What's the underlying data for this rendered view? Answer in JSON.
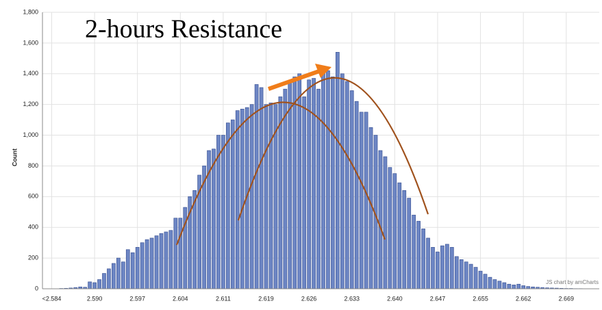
{
  "chart_data": {
    "type": "bar",
    "title": "2-hours Resistance",
    "y_label": "Count",
    "watermark": "JS chart by amCharts",
    "categories": [
      "<2.584",
      null,
      null,
      null,
      null,
      null,
      null,
      null,
      null,
      "2.590",
      null,
      null,
      null,
      null,
      null,
      null,
      null,
      null,
      "2.597",
      null,
      null,
      null,
      null,
      null,
      null,
      null,
      null,
      "2.604",
      null,
      null,
      null,
      null,
      null,
      null,
      null,
      null,
      "2.611",
      null,
      null,
      null,
      null,
      null,
      null,
      null,
      null,
      "2.619",
      null,
      null,
      null,
      null,
      null,
      null,
      null,
      null,
      "2.626",
      null,
      null,
      null,
      null,
      null,
      null,
      null,
      null,
      "2.633",
      null,
      null,
      null,
      null,
      null,
      null,
      null,
      null,
      "2.640",
      null,
      null,
      null,
      null,
      null,
      null,
      null,
      null,
      "2.647",
      null,
      null,
      null,
      null,
      null,
      null,
      null,
      null,
      "2.655",
      null,
      null,
      null,
      null,
      null,
      null,
      null,
      null,
      "2.662",
      null,
      null,
      null,
      null,
      null,
      null,
      null,
      null,
      "2.669",
      null,
      null,
      null,
      null,
      null,
      null
    ],
    "values": [
      0,
      0,
      2,
      3,
      5,
      8,
      12,
      10,
      45,
      40,
      60,
      100,
      130,
      165,
      200,
      175,
      255,
      235,
      270,
      300,
      320,
      330,
      345,
      360,
      370,
      380,
      460,
      460,
      530,
      600,
      640,
      740,
      800,
      900,
      910,
      1000,
      1000,
      1080,
      1100,
      1160,
      1170,
      1180,
      1200,
      1330,
      1310,
      1200,
      1210,
      1200,
      1250,
      1300,
      1350,
      1380,
      1400,
      1250,
      1360,
      1370,
      1300,
      1400,
      1420,
      1380,
      1540,
      1400,
      1350,
      1290,
      1220,
      1150,
      1150,
      1050,
      1000,
      900,
      860,
      790,
      750,
      690,
      640,
      590,
      480,
      440,
      390,
      330,
      270,
      240,
      280,
      290,
      270,
      210,
      190,
      175,
      160,
      140,
      115,
      95,
      75,
      60,
      50,
      40,
      30,
      25,
      30,
      20,
      15,
      12,
      10,
      8,
      6,
      5,
      4,
      3,
      2,
      2,
      1,
      1,
      0,
      0,
      0
    ],
    "color": "#6d86c4",
    "ylim": [
      0,
      1800
    ],
    "yticks": [
      0,
      200,
      400,
      600,
      800,
      {
        "value": 1000,
        "label": "1,000"
      },
      {
        "value": 1200,
        "label": "1,200"
      },
      {
        "value": 1400,
        "label": "1,400"
      },
      {
        "value": 1600,
        "label": "1,600"
      },
      {
        "value": 1800,
        "label": "1,800"
      }
    ],
    "grid": true
  }
}
